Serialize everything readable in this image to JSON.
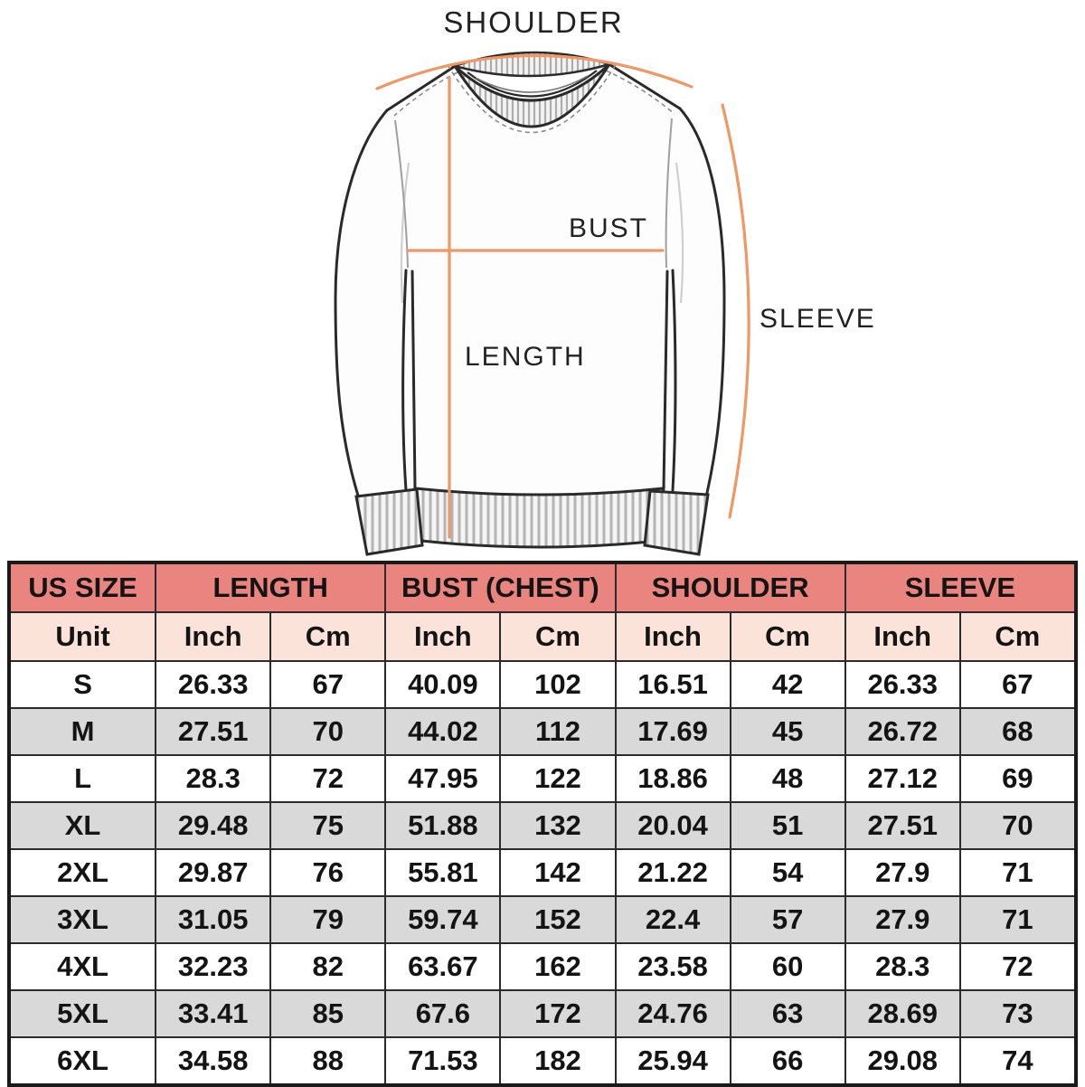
{
  "diagram": {
    "labels": {
      "shoulder": "SHOULDER",
      "bust": "BUST",
      "length": "LENGTH",
      "sleeve": "SLEEVE"
    },
    "annotation_color": "#F09763",
    "sketch_outline_color": "#2A2A2A"
  },
  "chart_data": {
    "type": "table",
    "header": {
      "size": "US SIZE",
      "unit_label": "Unit",
      "groups": [
        "LENGTH",
        "BUST (CHEST)",
        "SHOULDER",
        "SLEEVE"
      ],
      "units": [
        "Inch",
        "Cm",
        "Inch",
        "Cm",
        "Inch",
        "Cm",
        "Inch",
        "Cm"
      ]
    },
    "rows": [
      [
        "S",
        "26.33",
        "67",
        "40.09",
        "102",
        "16.51",
        "42",
        "26.33",
        "67"
      ],
      [
        "M",
        "27.51",
        "70",
        "44.02",
        "112",
        "17.69",
        "45",
        "26.72",
        "68"
      ],
      [
        "L",
        "28.3",
        "72",
        "47.95",
        "122",
        "18.86",
        "48",
        "27.12",
        "69"
      ],
      [
        "XL",
        "29.48",
        "75",
        "51.88",
        "132",
        "20.04",
        "51",
        "27.51",
        "70"
      ],
      [
        "2XL",
        "29.87",
        "76",
        "55.81",
        "142",
        "21.22",
        "54",
        "27.9",
        "71"
      ],
      [
        "3XL",
        "31.05",
        "79",
        "59.74",
        "152",
        "22.4",
        "57",
        "27.9",
        "71"
      ],
      [
        "4XL",
        "32.23",
        "82",
        "63.67",
        "162",
        "23.58",
        "60",
        "28.3",
        "72"
      ],
      [
        "5XL",
        "33.41",
        "85",
        "67.6",
        "172",
        "24.76",
        "63",
        "28.69",
        "73"
      ],
      [
        "6XL",
        "34.58",
        "88",
        "71.53",
        "182",
        "25.94",
        "66",
        "29.08",
        "74"
      ]
    ],
    "colors": {
      "group_header_bg": "#E9847E",
      "unit_header_bg": "#FBE3DA",
      "alt_row_bg": "#D9D9D9",
      "border": "#1A1A1A",
      "text": "#141414"
    }
  }
}
